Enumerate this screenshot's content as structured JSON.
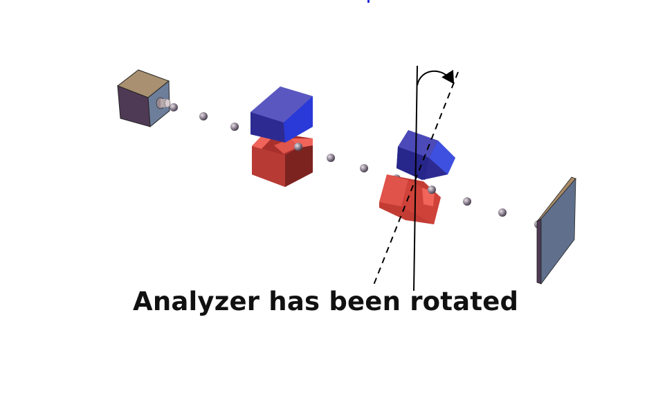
{
  "caption": "Analyzer has been rotated",
  "colors": {
    "magnet_north": "#3c3aa8",
    "magnet_south": "#d2433a",
    "source_top": "#a89070",
    "source_front": "#4f3a55",
    "source_side": "#6d7e9b",
    "screen_front": "#5f6f8c",
    "screen_edge": "#a88a68",
    "particle": "#8c8190"
  },
  "icons": {
    "source": "oven-source-icon",
    "polarizer": "stern-gerlach-magnet-icon",
    "analyzer": "rotated-stern-gerlach-magnet-icon",
    "detector": "detector-screen-icon",
    "rotation": "curved-rotation-arrow-icon"
  }
}
